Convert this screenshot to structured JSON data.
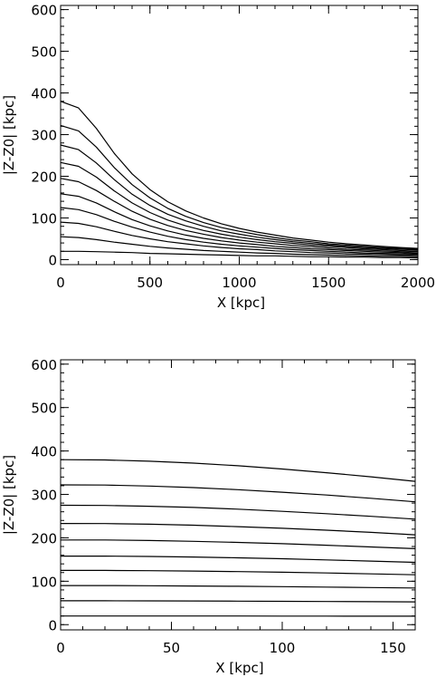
{
  "chart_data": [
    {
      "type": "line",
      "title": "",
      "xlabel": "X [kpc]",
      "ylabel": "|Z-Z0| [kpc]",
      "xlim": [
        0,
        2000
      ],
      "ylim": [
        -12,
        610
      ],
      "x_ticks": [
        0,
        500,
        1000,
        1500,
        2000
      ],
      "y_ticks": [
        0,
        100,
        200,
        300,
        400,
        500,
        600
      ],
      "grid": false,
      "legend": "none",
      "line_color": "#000000",
      "series": [
        {
          "x": [
            0,
            100,
            200,
            300,
            400,
            500,
            600,
            700,
            800,
            900,
            1000,
            1100,
            1200,
            1300,
            1400,
            1500,
            1600,
            1700,
            1800,
            1900,
            2000
          ],
          "values": [
            20,
            20,
            19,
            18,
            17,
            15,
            14,
            13,
            12,
            11,
            10,
            9,
            9,
            8,
            7,
            7,
            6,
            6,
            5,
            5,
            4
          ]
        },
        {
          "x": [
            0,
            100,
            200,
            300,
            400,
            500,
            600,
            700,
            800,
            900,
            1000,
            1100,
            1200,
            1300,
            1400,
            1500,
            1600,
            1700,
            1800,
            1900,
            2000
          ],
          "values": [
            55,
            53,
            48,
            42,
            37,
            32,
            28,
            25,
            22,
            20,
            18,
            16,
            15,
            13,
            12,
            11,
            10,
            9,
            8,
            8,
            7
          ]
        },
        {
          "x": [
            0,
            100,
            200,
            300,
            400,
            500,
            600,
            700,
            800,
            900,
            1000,
            1100,
            1200,
            1300,
            1400,
            1500,
            1600,
            1700,
            1800,
            1900,
            2000
          ],
          "values": [
            90,
            87,
            79,
            68,
            58,
            50,
            43,
            38,
            33,
            29,
            26,
            24,
            21,
            19,
            17,
            16,
            14,
            13,
            12,
            11,
            10
          ]
        },
        {
          "x": [
            0,
            100,
            200,
            300,
            400,
            500,
            600,
            700,
            800,
            900,
            1000,
            1100,
            1200,
            1300,
            1400,
            1500,
            1600,
            1700,
            1800,
            1900,
            2000
          ],
          "values": [
            125,
            120,
            108,
            92,
            78,
            66,
            56,
            48,
            42,
            37,
            33,
            30,
            27,
            24,
            22,
            20,
            18,
            16,
            15,
            14,
            13
          ]
        },
        {
          "x": [
            0,
            100,
            200,
            300,
            400,
            500,
            600,
            700,
            800,
            900,
            1000,
            1100,
            1200,
            1300,
            1400,
            1500,
            1600,
            1700,
            1800,
            1900,
            2000
          ],
          "values": [
            158,
            152,
            136,
            115,
            96,
            81,
            69,
            59,
            51,
            45,
            40,
            36,
            32,
            29,
            26,
            24,
            22,
            20,
            18,
            17,
            15
          ]
        },
        {
          "x": [
            0,
            100,
            200,
            300,
            400,
            500,
            600,
            700,
            800,
            900,
            1000,
            1100,
            1200,
            1300,
            1400,
            1500,
            1600,
            1700,
            1800,
            1900,
            2000
          ],
          "values": [
            195,
            187,
            166,
            140,
            116,
            97,
            82,
            70,
            61,
            53,
            47,
            42,
            38,
            34,
            31,
            28,
            25,
            23,
            21,
            19,
            18
          ]
        },
        {
          "x": [
            0,
            100,
            200,
            300,
            400,
            500,
            600,
            700,
            800,
            900,
            1000,
            1100,
            1200,
            1300,
            1400,
            1500,
            1600,
            1700,
            1800,
            1900,
            2000
          ],
          "values": [
            233,
            224,
            198,
            165,
            136,
            113,
            95,
            81,
            70,
            61,
            54,
            48,
            43,
            39,
            35,
            32,
            29,
            26,
            24,
            22,
            20
          ]
        },
        {
          "x": [
            0,
            100,
            200,
            300,
            400,
            500,
            600,
            700,
            800,
            900,
            1000,
            1100,
            1200,
            1300,
            1400,
            1500,
            1600,
            1700,
            1800,
            1900,
            2000
          ],
          "values": [
            275,
            264,
            232,
            192,
            157,
            130,
            109,
            93,
            80,
            69,
            61,
            54,
            48,
            43,
            39,
            35,
            32,
            29,
            27,
            25,
            23
          ]
        },
        {
          "x": [
            0,
            100,
            200,
            300,
            400,
            500,
            600,
            700,
            800,
            900,
            1000,
            1100,
            1200,
            1300,
            1400,
            1500,
            1600,
            1700,
            1800,
            1900,
            2000
          ],
          "values": [
            322,
            309,
            270,
            221,
            180,
            148,
            123,
            104,
            89,
            77,
            68,
            60,
            53,
            47,
            43,
            38,
            35,
            32,
            29,
            27,
            25
          ]
        },
        {
          "x": [
            0,
            100,
            200,
            300,
            400,
            500,
            600,
            700,
            800,
            900,
            1000,
            1100,
            1200,
            1300,
            1400,
            1500,
            1600,
            1700,
            1800,
            1900,
            2000
          ],
          "values": [
            380,
            364,
            315,
            255,
            206,
            168,
            139,
            117,
            100,
            86,
            75,
            66,
            59,
            52,
            47,
            42,
            38,
            35,
            32,
            29,
            27
          ]
        }
      ]
    },
    {
      "type": "line",
      "title": "",
      "xlabel": "X [kpc]",
      "ylabel": "|Z-Z0| [kpc]",
      "xlim": [
        0,
        160
      ],
      "ylim": [
        -12,
        610
      ],
      "x_ticks": [
        0,
        50,
        100,
        150
      ],
      "y_ticks": [
        0,
        100,
        200,
        300,
        400,
        500,
        600
      ],
      "grid": false,
      "legend": "none",
      "line_color": "#000000",
      "series": [
        {
          "x": [
            0,
            20,
            40,
            60,
            80,
            100,
            120,
            140,
            160
          ],
          "values": [
            20,
            20,
            20,
            20,
            19.9,
            19.8,
            19.7,
            19.6,
            19.5
          ]
        },
        {
          "x": [
            0,
            20,
            40,
            60,
            80,
            100,
            120,
            140,
            160
          ],
          "values": [
            55,
            55,
            54.8,
            54.5,
            54.2,
            53.8,
            53.4,
            53,
            52.5
          ]
        },
        {
          "x": [
            0,
            20,
            40,
            60,
            80,
            100,
            120,
            140,
            160
          ],
          "values": [
            90,
            90,
            89.6,
            89,
            88.3,
            87.5,
            86.5,
            85.5,
            84.5
          ]
        },
        {
          "x": [
            0,
            20,
            40,
            60,
            80,
            100,
            120,
            140,
            160
          ],
          "values": [
            125,
            125,
            124.4,
            123.5,
            122.2,
            120.7,
            119,
            117,
            115
          ]
        },
        {
          "x": [
            0,
            20,
            40,
            60,
            80,
            100,
            120,
            140,
            160
          ],
          "values": [
            158,
            158,
            157,
            155.8,
            154,
            151.8,
            149.2,
            146.4,
            143.5
          ]
        },
        {
          "x": [
            0,
            20,
            40,
            60,
            80,
            100,
            120,
            140,
            160
          ],
          "values": [
            195,
            195,
            193.8,
            192,
            189.5,
            186.5,
            183,
            179,
            175
          ]
        },
        {
          "x": [
            0,
            20,
            40,
            60,
            80,
            100,
            120,
            140,
            160
          ],
          "values": [
            233,
            232.8,
            231.3,
            229,
            225.8,
            222,
            217.5,
            212.5,
            207
          ]
        },
        {
          "x": [
            0,
            20,
            40,
            60,
            80,
            100,
            120,
            140,
            160
          ],
          "values": [
            275,
            274.6,
            272.8,
            270,
            266,
            261,
            255.5,
            249.5,
            243
          ]
        },
        {
          "x": [
            0,
            20,
            40,
            60,
            80,
            100,
            120,
            140,
            160
          ],
          "values": [
            322,
            321.5,
            319.3,
            315.8,
            311,
            305,
            298.5,
            291,
            283
          ]
        },
        {
          "x": [
            0,
            20,
            40,
            60,
            80,
            100,
            120,
            140,
            160
          ],
          "values": [
            380,
            379.3,
            376.5,
            372,
            366,
            358.5,
            350,
            340.5,
            330
          ]
        }
      ]
    }
  ]
}
